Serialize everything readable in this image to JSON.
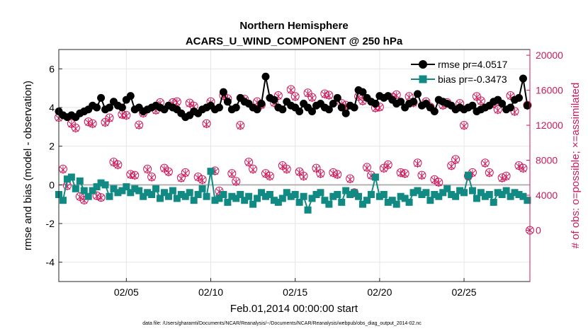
{
  "chart_data": {
    "type": "line",
    "title": "Northern Hemisphere",
    "subtitle": "ACARS_U_WIND_COMPONENT @ 250 hPa",
    "xlabel": "Feb.01,2014 00:00:00 start",
    "ylabel_left": "rmse and bias (model - observation)",
    "ylabel_right": "# of obs: o=possible; ×=assimilated",
    "footnote": "data file: /Users/gharamti/Documents/NCAR/Reanalysis/~/Documents/NCAR/Reanalysis/webpub/obs_diag_output_2014-02.nc",
    "x_range": [
      1.0,
      28.9
    ],
    "x_ticks": [
      5,
      10,
      15,
      20,
      25
    ],
    "x_tick_labels": [
      "02/05",
      "02/10",
      "02/15",
      "02/20",
      "02/25"
    ],
    "ylim_left": [
      -5,
      7
    ],
    "y_ticks_left": [
      -4,
      -2,
      0,
      2,
      4,
      6
    ],
    "ylim_right": [
      -5862,
      20655
    ],
    "y_ticks_right": [
      0,
      4000,
      8000,
      12000,
      16000,
      20000
    ],
    "grid": true,
    "legend_position": "top-right",
    "colors": {
      "rmse": "#000000",
      "bias": "#128a84",
      "obs": "#cc1a5c",
      "zero_line": "#b3b3b3",
      "grid": "#e6e6e6"
    },
    "series": [
      {
        "name": "rmse",
        "legend": "rmse pr=4.0517",
        "x": [
          1.0,
          1.25,
          1.5,
          1.75,
          2.0,
          2.25,
          2.5,
          2.75,
          3.0,
          3.25,
          3.5,
          3.75,
          4.0,
          4.25,
          4.5,
          4.75,
          5.0,
          5.25,
          5.5,
          5.75,
          6.0,
          6.25,
          6.5,
          6.75,
          7.0,
          7.25,
          7.5,
          7.75,
          8.0,
          8.25,
          8.5,
          8.75,
          9.0,
          9.25,
          9.5,
          9.75,
          10.0,
          10.25,
          10.5,
          10.75,
          11.0,
          11.25,
          11.5,
          11.75,
          12.0,
          12.25,
          12.5,
          12.75,
          13.0,
          13.25,
          13.5,
          13.75,
          14.0,
          14.25,
          14.5,
          14.75,
          15.0,
          15.25,
          15.5,
          15.75,
          16.0,
          16.25,
          16.5,
          16.75,
          17.0,
          17.25,
          17.5,
          17.75,
          18.0,
          18.25,
          18.5,
          18.75,
          19.0,
          19.25,
          19.5,
          19.75,
          20.0,
          20.25,
          20.5,
          20.75,
          21.0,
          21.25,
          21.5,
          21.75,
          22.0,
          22.25,
          22.5,
          22.75,
          23.0,
          23.25,
          23.5,
          23.75,
          24.0,
          24.25,
          24.5,
          24.75,
          25.0,
          25.25,
          25.5,
          25.75,
          26.0,
          26.25,
          26.5,
          26.75,
          27.0,
          27.25,
          27.5,
          27.75,
          28.0,
          28.25,
          28.5,
          28.75
        ],
        "values": [
          3.8,
          3.6,
          3.5,
          3.6,
          3.5,
          3.7,
          3.8,
          3.9,
          4.1,
          4.0,
          4.5,
          3.9,
          4.0,
          4.3,
          4.1,
          4.0,
          4.4,
          4.6,
          3.9,
          4.0,
          3.8,
          3.9,
          4.0,
          4.1,
          4.0,
          3.9,
          4.1,
          4.0,
          3.9,
          3.7,
          3.5,
          3.6,
          3.8,
          3.7,
          3.9,
          4.0,
          4.1,
          3.9,
          4.0,
          4.8,
          4.3,
          3.9,
          4.0,
          4.5,
          4.3,
          4.2,
          4.0,
          3.9,
          4.2,
          5.6,
          4.5,
          4.4,
          4.0,
          3.9,
          4.3,
          4.1,
          4.0,
          3.8,
          4.2,
          4.0,
          3.8,
          4.1,
          4.2,
          4.0,
          3.9,
          4.2,
          4.5,
          4.0,
          3.7,
          4.1,
          4.0,
          4.9,
          4.8,
          4.5,
          4.3,
          4.2,
          4.6,
          4.5,
          4.6,
          4.4,
          4.2,
          4.3,
          4.0,
          4.2,
          4.3,
          4.7,
          4.1,
          4.2,
          4.0,
          3.8,
          4.4,
          4.3,
          4.2,
          4.1,
          3.9,
          4.0,
          3.9,
          4.0,
          4.1,
          3.8,
          3.9,
          4.0,
          4.1,
          4.3,
          4.4,
          4.2,
          3.9,
          4.0,
          4.4,
          4.5,
          5.5,
          4.1
        ]
      },
      {
        "name": "bias",
        "legend": "bias pr=-0.3473",
        "x": [
          1.0,
          1.25,
          1.5,
          1.75,
          2.0,
          2.25,
          2.5,
          2.75,
          3.0,
          3.25,
          3.5,
          3.75,
          4.0,
          4.25,
          4.5,
          4.75,
          5.0,
          5.25,
          5.5,
          5.75,
          6.0,
          6.25,
          6.5,
          6.75,
          7.0,
          7.25,
          7.5,
          7.75,
          8.0,
          8.25,
          8.5,
          8.75,
          9.0,
          9.25,
          9.5,
          9.75,
          10.0,
          10.25,
          10.5,
          10.75,
          11.0,
          11.25,
          11.5,
          11.75,
          12.0,
          12.25,
          12.5,
          12.75,
          13.0,
          13.25,
          13.5,
          13.75,
          14.0,
          14.25,
          14.5,
          14.75,
          15.0,
          15.25,
          15.5,
          15.75,
          16.0,
          16.25,
          16.5,
          16.75,
          17.0,
          17.25,
          17.5,
          17.75,
          18.0,
          18.25,
          18.5,
          18.75,
          19.0,
          19.25,
          19.5,
          19.75,
          20.0,
          20.25,
          20.5,
          20.75,
          21.0,
          21.25,
          21.5,
          21.75,
          22.0,
          22.25,
          22.5,
          22.75,
          23.0,
          23.25,
          23.5,
          23.75,
          24.0,
          24.25,
          24.5,
          24.75,
          25.0,
          25.25,
          25.5,
          25.75,
          26.0,
          26.25,
          26.5,
          26.75,
          27.0,
          27.25,
          27.5,
          27.75,
          28.0,
          28.25,
          28.5,
          28.75
        ],
        "values": [
          -0.5,
          -0.8,
          0.3,
          0.4,
          -0.2,
          0.2,
          -0.3,
          -0.6,
          -0.3,
          -0.1,
          0.1,
          0.0,
          -0.6,
          -0.2,
          -0.4,
          -0.3,
          -0.1,
          -0.4,
          -0.2,
          -0.3,
          -0.6,
          -0.4,
          -0.5,
          -0.2,
          -0.7,
          -0.4,
          -0.6,
          -0.3,
          -0.7,
          -0.5,
          -0.6,
          -0.4,
          -0.8,
          -0.5,
          -0.2,
          -0.6,
          0.7,
          -0.8,
          -0.7,
          -0.5,
          -0.9,
          -0.6,
          -0.7,
          -0.5,
          -0.8,
          -0.6,
          -1.0,
          -0.7,
          -0.4,
          -0.6,
          -0.5,
          -0.8,
          -0.9,
          -0.7,
          -0.4,
          -0.6,
          -0.5,
          -0.9,
          -0.6,
          -1.3,
          -0.7,
          -0.5,
          -0.4,
          -0.8,
          -1.0,
          -0.6,
          -0.5,
          -0.9,
          -0.3,
          -0.5,
          -0.4,
          -0.6,
          -1.0,
          -0.8,
          -0.5,
          0.4,
          -0.6,
          -0.5,
          -0.9,
          -0.8,
          -1.0,
          -0.6,
          -0.7,
          -0.9,
          -0.4,
          -0.3,
          -0.5,
          -0.4,
          -0.8,
          -0.5,
          -0.6,
          -0.4,
          -0.2,
          -0.5,
          -0.6,
          -0.3,
          -0.4,
          0.5,
          -0.3,
          -0.7,
          -0.4,
          -0.6,
          -0.5,
          -0.9,
          -0.4,
          -0.5,
          -0.3,
          -0.6,
          -0.4,
          -0.5,
          -0.6,
          -0.8
        ]
      },
      {
        "name": "obs possible",
        "axis": "right",
        "x": [
          1.0,
          1.25,
          1.5,
          1.75,
          2.0,
          2.25,
          2.5,
          2.75,
          3.0,
          3.25,
          3.5,
          3.75,
          4.0,
          4.25,
          4.5,
          4.75,
          5.0,
          5.25,
          5.5,
          5.75,
          6.0,
          6.25,
          6.5,
          6.75,
          7.0,
          7.25,
          7.5,
          7.75,
          8.0,
          8.25,
          8.5,
          8.75,
          9.0,
          9.25,
          9.5,
          9.75,
          10.0,
          10.25,
          10.5,
          10.75,
          11.0,
          11.25,
          11.5,
          11.75,
          12.0,
          12.25,
          12.5,
          12.75,
          13.0,
          13.25,
          13.5,
          13.75,
          14.0,
          14.25,
          14.5,
          14.75,
          15.0,
          15.25,
          15.5,
          15.75,
          16.0,
          16.25,
          16.5,
          16.75,
          17.0,
          17.25,
          17.5,
          17.75,
          18.0,
          18.25,
          18.5,
          18.75,
          19.0,
          19.25,
          19.5,
          19.75,
          20.0,
          20.25,
          20.5,
          20.75,
          21.0,
          21.25,
          21.5,
          21.75,
          22.0,
          22.25,
          22.5,
          22.75,
          23.0,
          23.25,
          23.5,
          23.75,
          24.0,
          24.25,
          24.5,
          24.75,
          25.0,
          25.25,
          25.5,
          25.75,
          26.0,
          26.25,
          26.5,
          26.75,
          27.0,
          27.25,
          27.5,
          27.75,
          28.0,
          28.25,
          28.5,
          28.75
        ],
        "values": [
          12900,
          7000,
          5100,
          12200,
          11700,
          3850,
          3450,
          12400,
          12200,
          3950,
          3750,
          12350,
          12850,
          7800,
          7500,
          13250,
          13150,
          6400,
          6300,
          12050,
          13400,
          7000,
          6100,
          13750,
          14600,
          7100,
          6700,
          14600,
          14700,
          6000,
          6600,
          14550,
          14200,
          6100,
          5800,
          12200,
          14700,
          6800,
          4500,
          15400,
          15050,
          6500,
          5600,
          12000,
          15000,
          7800,
          7000,
          14700,
          14350,
          6500,
          6200,
          14600,
          15400,
          7400,
          7000,
          16100,
          15300,
          6700,
          6200,
          15700,
          15200,
          7100,
          6500,
          15600,
          15450,
          6600,
          6400,
          14500,
          14300,
          5900,
          4300,
          15300,
          14800,
          7200,
          6300,
          14000,
          14100,
          7100,
          7500,
          15200,
          15500,
          6600,
          6500,
          15300,
          14600,
          7700,
          6300,
          14700,
          14100,
          5800,
          5500,
          14300,
          14600,
          7400,
          8100,
          14500,
          12000,
          6200,
          6600,
          15300,
          14800,
          7700,
          6600,
          14500,
          13800,
          6000,
          6200,
          15400,
          13600,
          7400,
          7100,
          14300
        ],
        "mark_open_above_count": 0,
        "extra_point_day": 28.9,
        "extra_point_value": 0
      },
      {
        "name": "obs assimilated",
        "axis": "right",
        "x": [
          1.0,
          1.25,
          1.5,
          1.75,
          2.0,
          2.25,
          2.5,
          2.75,
          3.0,
          3.25,
          3.5,
          3.75,
          4.0,
          4.25,
          4.5,
          4.75,
          5.0,
          5.25,
          5.5,
          5.75,
          6.0,
          6.25,
          6.5,
          6.75,
          7.0,
          7.25,
          7.5,
          7.75,
          8.0,
          8.25,
          8.5,
          8.75,
          9.0,
          9.25,
          9.5,
          9.75,
          10.0,
          10.25,
          10.5,
          10.75,
          11.0,
          11.25,
          11.5,
          11.75,
          12.0,
          12.25,
          12.5,
          12.75,
          13.0,
          13.25,
          13.5,
          13.75,
          14.0,
          14.25,
          14.5,
          14.75,
          15.0,
          15.25,
          15.5,
          15.75,
          16.0,
          16.25,
          16.5,
          16.75,
          17.0,
          17.25,
          17.5,
          17.75,
          18.0,
          18.25,
          18.5,
          18.75,
          19.0,
          19.25,
          19.5,
          19.75,
          20.0,
          20.25,
          20.5,
          20.75,
          21.0,
          21.25,
          21.5,
          21.75,
          22.0,
          22.25,
          22.5,
          22.75,
          23.0,
          23.25,
          23.5,
          23.75,
          24.0,
          24.25,
          24.5,
          24.75,
          25.0,
          25.25,
          25.5,
          25.75,
          26.0,
          26.25,
          26.5,
          26.75,
          27.0,
          27.25,
          27.5,
          27.75,
          28.0,
          28.25,
          28.5,
          28.75
        ],
        "values": [
          12800,
          6900,
          5000,
          12100,
          11600,
          3800,
          3400,
          12300,
          12100,
          3900,
          3700,
          12250,
          12750,
          7700,
          7400,
          13150,
          13050,
          6300,
          6200,
          11950,
          13300,
          6900,
          6000,
          13650,
          14500,
          7000,
          6600,
          14500,
          14600,
          5900,
          6500,
          14450,
          14100,
          6000,
          5700,
          12100,
          14600,
          6700,
          4400,
          15300,
          14950,
          6400,
          5500,
          11900,
          14900,
          7700,
          6900,
          14600,
          14250,
          6400,
          6100,
          14500,
          15300,
          7300,
          6900,
          16000,
          15200,
          6600,
          6100,
          15600,
          15100,
          7000,
          6400,
          15500,
          15350,
          6500,
          6300,
          14400,
          14200,
          5800,
          4200,
          15200,
          14700,
          7100,
          6200,
          13900,
          14000,
          7000,
          7400,
          15100,
          15400,
          6500,
          6400,
          15200,
          14500,
          7600,
          6200,
          14600,
          14000,
          5700,
          5400,
          14200,
          14500,
          7300,
          8000,
          14400,
          11900,
          6100,
          6500,
          15200,
          14700,
          7600,
          6500,
          14400,
          13700,
          5900,
          6100,
          15300,
          13500,
          7300,
          7000,
          14200
        ]
      }
    ]
  }
}
